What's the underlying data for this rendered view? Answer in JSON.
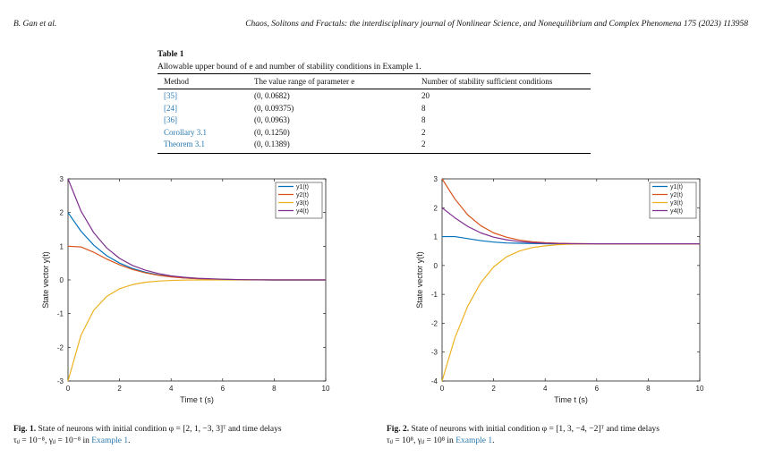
{
  "header": {
    "author": "B. Gan et al.",
    "journal": "Chaos, Solitons and Fractals: the interdisciplinary journal of Nonlinear Science, and Nonequilibrium and Complex Phenomena 175 (2023) 113958"
  },
  "table": {
    "title": "Table 1",
    "caption": "Allowable upper bound of e and number of stability conditions in Example 1.",
    "headers": [
      "Method",
      "The value range of parameter e",
      "Number of stability sufficient conditions"
    ],
    "rows": [
      {
        "method": "[35]",
        "range": "(0, 0.0682)",
        "count": "20"
      },
      {
        "method": "[24]",
        "range": "(0, 0.09375)",
        "count": "8"
      },
      {
        "method": "[36]",
        "range": "(0, 0.0963)",
        "count": "8"
      },
      {
        "method": "Corollary 3.1",
        "range": "(0, 0.1250)",
        "count": "2"
      },
      {
        "method": "Theorem 3.1",
        "range": "(0, 0.1389)",
        "count": "2"
      }
    ]
  },
  "figures": [
    {
      "caption_label": "Fig. 1.",
      "caption_line1": "State of neurons with initial condition φ = [2, 1, −3, 3]ᵀ and time delays",
      "caption_line2_pre": "τᵢⱼ = 10⁻⁸, γᵢⱼ = 10⁻⁸ in ",
      "caption_link": "Example 1",
      "caption_end": "."
    },
    {
      "caption_label": "Fig. 2.",
      "caption_line1": "State of neurons with initial condition φ = [1, 3, −4, −2]ᵀ and time delays",
      "caption_line2_pre": "τᵢⱼ = 10⁸, γᵢⱼ = 10⁸ in ",
      "caption_link": "Example 1",
      "caption_end": "."
    }
  ],
  "chart_data": [
    {
      "type": "line",
      "xlabel": "Time t (s)",
      "ylabel": "State vector y(t)",
      "xlim": [
        0,
        10
      ],
      "ylim": [
        -3,
        3
      ],
      "xticks": [
        0,
        2,
        4,
        6,
        8,
        10
      ],
      "yticks": [
        -3,
        -2,
        -1,
        0,
        1,
        2,
        3
      ],
      "legend_position": "top-right",
      "x": [
        0,
        0.5,
        1,
        1.5,
        2,
        2.5,
        3,
        3.5,
        4,
        4.5,
        5,
        6,
        7,
        8,
        9,
        10
      ],
      "series": [
        {
          "name": "y1(t)",
          "color": "#0072bd",
          "values": [
            2.0,
            1.45,
            1.03,
            0.72,
            0.5,
            0.34,
            0.23,
            0.15,
            0.1,
            0.06,
            0.04,
            0.015,
            0.005,
            0.0,
            0.0,
            0.0
          ]
        },
        {
          "name": "y2(t)",
          "color": "#d95319",
          "values": [
            1.0,
            0.98,
            0.82,
            0.62,
            0.45,
            0.31,
            0.21,
            0.14,
            0.09,
            0.06,
            0.04,
            0.015,
            0.005,
            0.0,
            0.0,
            0.0
          ]
        },
        {
          "name": "y3(t)",
          "color": "#edb120",
          "values": [
            -3.0,
            -1.65,
            -0.9,
            -0.49,
            -0.26,
            -0.14,
            -0.07,
            -0.035,
            -0.015,
            -0.005,
            0.0,
            0.0,
            0.0,
            0.0,
            0.0,
            0.0
          ]
        },
        {
          "name": "y4(t)",
          "color": "#7e2f8e",
          "values": [
            3.0,
            2.05,
            1.4,
            0.95,
            0.64,
            0.43,
            0.29,
            0.19,
            0.12,
            0.08,
            0.05,
            0.02,
            0.005,
            0.0,
            0.0,
            0.0
          ]
        }
      ]
    },
    {
      "type": "line",
      "xlabel": "Time t (s)",
      "ylabel": "State vector y(t)",
      "xlim": [
        0,
        10
      ],
      "ylim": [
        -4,
        3
      ],
      "xticks": [
        0,
        2,
        4,
        6,
        8,
        10
      ],
      "yticks": [
        -4,
        -3,
        -2,
        -1,
        0,
        1,
        2,
        3
      ],
      "legend_position": "top-right",
      "x": [
        0,
        0.5,
        1,
        1.5,
        2,
        2.5,
        3,
        3.5,
        4,
        4.5,
        5,
        6,
        7,
        8,
        9,
        10
      ],
      "series": [
        {
          "name": "y1(t)",
          "color": "#0072bd",
          "values": [
            1.0,
            1.0,
            0.93,
            0.86,
            0.81,
            0.78,
            0.77,
            0.76,
            0.755,
            0.75,
            0.75,
            0.75,
            0.75,
            0.75,
            0.75,
            0.75
          ]
        },
        {
          "name": "y2(t)",
          "color": "#d95319",
          "values": [
            3.0,
            2.3,
            1.75,
            1.38,
            1.13,
            0.98,
            0.88,
            0.82,
            0.79,
            0.77,
            0.76,
            0.75,
            0.75,
            0.75,
            0.75,
            0.75
          ]
        },
        {
          "name": "y3(t)",
          "color": "#edb120",
          "values": [
            -4.0,
            -2.5,
            -1.4,
            -0.6,
            -0.05,
            0.3,
            0.5,
            0.62,
            0.68,
            0.72,
            0.74,
            0.75,
            0.75,
            0.75,
            0.75,
            0.75
          ]
        },
        {
          "name": "y4(t)",
          "color": "#7e2f8e",
          "values": [
            2.0,
            1.65,
            1.35,
            1.13,
            0.98,
            0.89,
            0.83,
            0.79,
            0.77,
            0.76,
            0.755,
            0.75,
            0.75,
            0.75,
            0.75,
            0.75
          ]
        }
      ]
    }
  ]
}
